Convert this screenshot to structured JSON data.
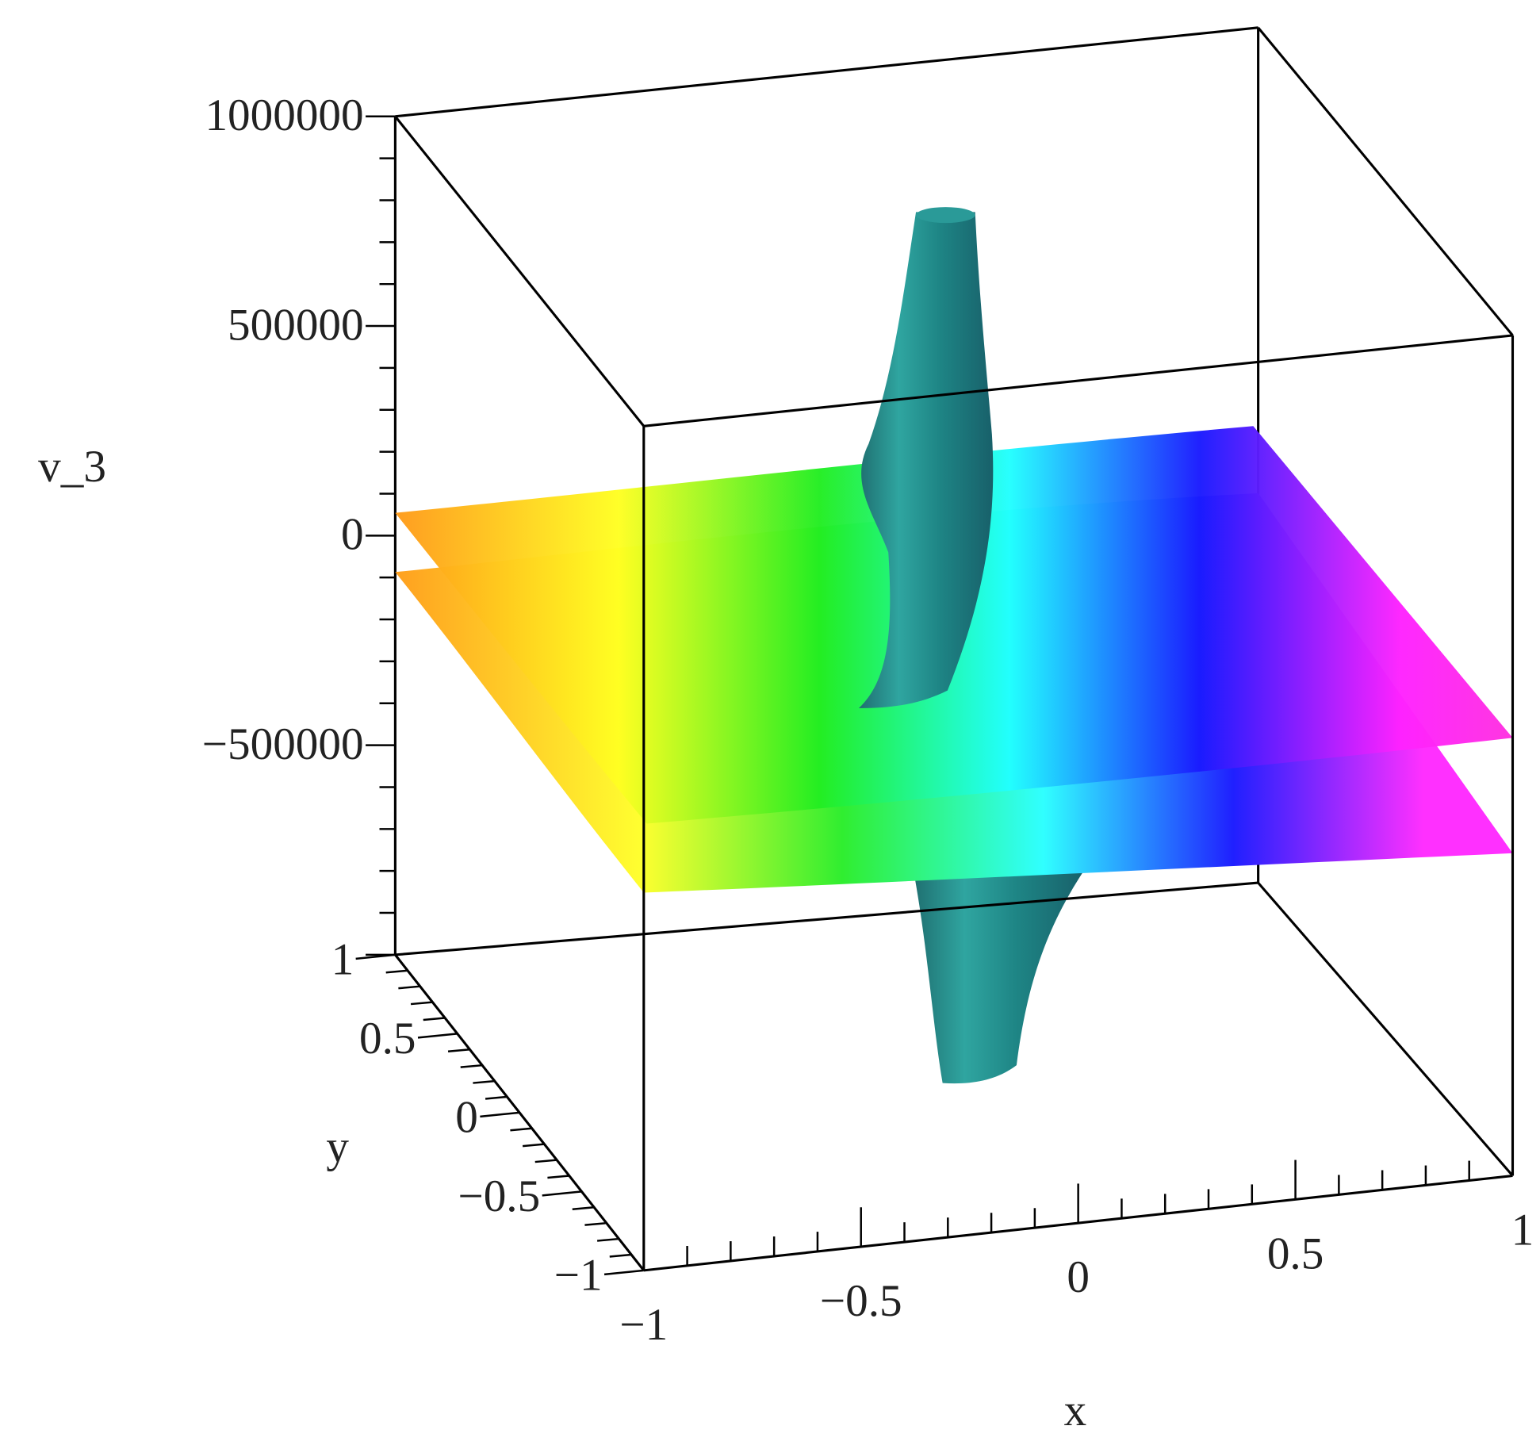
{
  "chart_data": {
    "type": "surface",
    "title": "",
    "xlabel": "x",
    "ylabel": "y",
    "zlabel": "v_3",
    "xlim": [
      -1,
      1
    ],
    "ylim": [
      -1,
      1
    ],
    "zlim": [
      -1000000,
      1000000
    ],
    "x_ticks": [
      {
        "value": -1,
        "label": "−1"
      },
      {
        "value": -0.5,
        "label": "−0.5"
      },
      {
        "value": 0,
        "label": "0"
      },
      {
        "value": 0.5,
        "label": "0.5"
      },
      {
        "value": 1,
        "label": "1"
      }
    ],
    "y_ticks": [
      {
        "value": 1,
        "label": "1"
      },
      {
        "value": 0.5,
        "label": "0.5"
      },
      {
        "value": 0,
        "label": "0"
      },
      {
        "value": -0.5,
        "label": "−0.5"
      },
      {
        "value": -1,
        "label": "−1"
      }
    ],
    "z_ticks": [
      {
        "value": 1000000,
        "label": "1000000"
      },
      {
        "value": 500000,
        "label": "500000"
      },
      {
        "value": 0,
        "label": "0"
      },
      {
        "value": -500000,
        "label": "−500000"
      }
    ],
    "box": true,
    "grid": false,
    "legend": "none",
    "colormap": [
      "#ff9a1a",
      "#ffff22",
      "#22ee22",
      "#22ffff",
      "#1a1aff",
      "#ff22ff"
    ],
    "singularity_color": "#1f8080",
    "description_features": {
      "sheets": 2,
      "spike_up_max": 1000000,
      "spike_down_min": -1000000
    }
  }
}
